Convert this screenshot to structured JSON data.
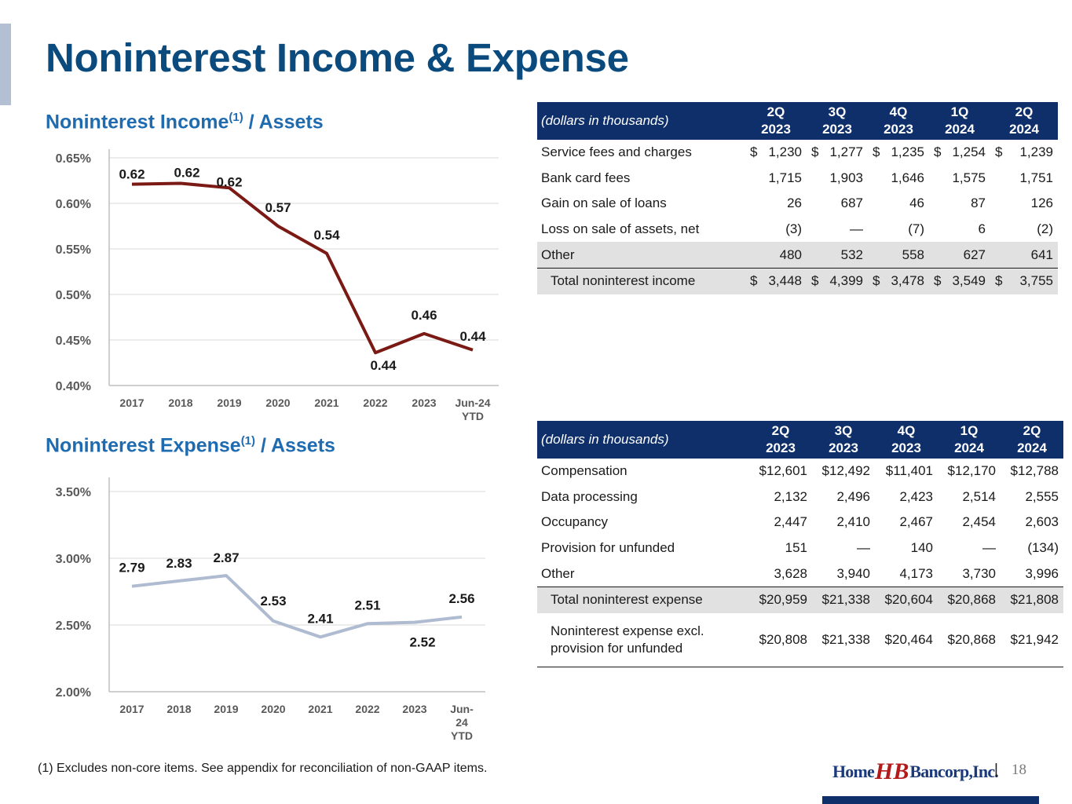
{
  "title": "Noninterest Income & Expense",
  "income_chart_title": {
    "main": "Noninterest Income",
    "sup": "(1)",
    "suffix": " / Assets"
  },
  "expense_chart_title": {
    "main": "Noninterest Expense",
    "sup": "(1)",
    "suffix": " / Assets"
  },
  "chart_data": [
    {
      "type": "line",
      "title": "Noninterest Income(1) / Assets",
      "categories": [
        "2017",
        "2018",
        "2019",
        "2020",
        "2021",
        "2022",
        "2023",
        "Jun-24 YTD"
      ],
      "values": [
        0.621,
        0.622,
        0.617,
        0.575,
        0.545,
        0.436,
        0.457,
        0.439
      ],
      "data_labels": [
        "0.62",
        "0.62",
        "0.62",
        "0.57",
        "0.54",
        "0.44",
        "0.46",
        "0.44"
      ],
      "yticks": [
        "0.40%",
        "0.45%",
        "0.50%",
        "0.55%",
        "0.60%",
        "0.65%"
      ],
      "ylim": [
        0.4,
        0.65
      ],
      "line_color": "#7b1a14",
      "grid": true
    },
    {
      "type": "line",
      "title": "Noninterest Expense(1) / Assets",
      "categories": [
        "2017",
        "2018",
        "2019",
        "2020",
        "2021",
        "2022",
        "2023",
        "Jun-24 YTD"
      ],
      "values": [
        2.79,
        2.83,
        2.87,
        2.53,
        2.41,
        2.51,
        2.52,
        2.56
      ],
      "data_labels": [
        "2.79",
        "2.83",
        "2.87",
        "2.53",
        "2.41",
        "2.51",
        "2.52",
        "2.56"
      ],
      "yticks": [
        "2.00%",
        "2.50%",
        "3.00%",
        "3.50%"
      ],
      "ylim": [
        2.0,
        3.5
      ],
      "line_color": "#aebbd0",
      "grid": true
    }
  ],
  "income_table": {
    "header_desc": "(dollars in thousands)",
    "columns": [
      {
        "line1": "2Q",
        "line2": "2023"
      },
      {
        "line1": "3Q",
        "line2": "2023"
      },
      {
        "line1": "4Q",
        "line2": "2023"
      },
      {
        "line1": "1Q",
        "line2": "2024"
      },
      {
        "line1": "2Q",
        "line2": "2024"
      }
    ],
    "rows": [
      {
        "label": "Service fees and charges",
        "values": [
          "1,230",
          "1,277",
          "1,235",
          "1,254",
          "1,239"
        ],
        "dollar": true
      },
      {
        "label": "Bank card fees",
        "values": [
          "1,715",
          "1,903",
          "1,646",
          "1,575",
          "1,751"
        ]
      },
      {
        "label": "Gain on sale of loans",
        "values": [
          "26",
          "687",
          "46",
          "87",
          "126"
        ]
      },
      {
        "label": "Loss on sale of assets, net",
        "values": [
          "(3)",
          "—",
          "(7)",
          "6",
          "(2)"
        ]
      },
      {
        "label": "Other",
        "values": [
          "480",
          "532",
          "558",
          "627",
          "641"
        ]
      }
    ],
    "total": {
      "label": "Total noninterest income",
      "values": [
        "3,448",
        "4,399",
        "3,478",
        "3,549",
        "3,755"
      ]
    }
  },
  "expense_table": {
    "header_desc": "(dollars in thousands)",
    "columns": [
      {
        "line1": "2Q",
        "line2": "2023"
      },
      {
        "line1": "3Q",
        "line2": "2023"
      },
      {
        "line1": "4Q",
        "line2": "2023"
      },
      {
        "line1": "1Q",
        "line2": "2024"
      },
      {
        "line1": "2Q",
        "line2": "2024"
      }
    ],
    "rows": [
      {
        "label": "Compensation",
        "values": [
          "$12,601",
          "$12,492",
          "$11,401",
          "$12,170",
          "$12,788"
        ]
      },
      {
        "label": "Data processing",
        "values": [
          "2,132",
          "2,496",
          "2,423",
          "2,514",
          "2,555"
        ]
      },
      {
        "label": "Occupancy",
        "values": [
          "2,447",
          "2,410",
          "2,467",
          "2,454",
          "2,603"
        ]
      },
      {
        "label": "Provision for unfunded",
        "values": [
          "151",
          "—",
          "140",
          "—",
          "(134)"
        ]
      },
      {
        "label": "Other",
        "values": [
          "3,628",
          "3,940",
          "4,173",
          "3,730",
          "3,996"
        ]
      }
    ],
    "total": {
      "label": "Total noninterest expense",
      "values": [
        "$20,959",
        "$21,338",
        "$20,604",
        "$20,868",
        "$21,808"
      ]
    },
    "excl": {
      "label_line1": "Noninterest expense excl.",
      "label_line2": "provision for unfunded",
      "values": [
        "$20,808",
        "$21,338",
        "$20,464",
        "$20,868",
        "$21,942"
      ]
    }
  },
  "footnote": "(1)   Excludes non-core items. See appendix for reconciliation of non-GAAP items.",
  "logo": {
    "left": "Home",
    "mark": "HB",
    "right": "Bancorp,Inc."
  },
  "page_number": "18",
  "separator": "|"
}
